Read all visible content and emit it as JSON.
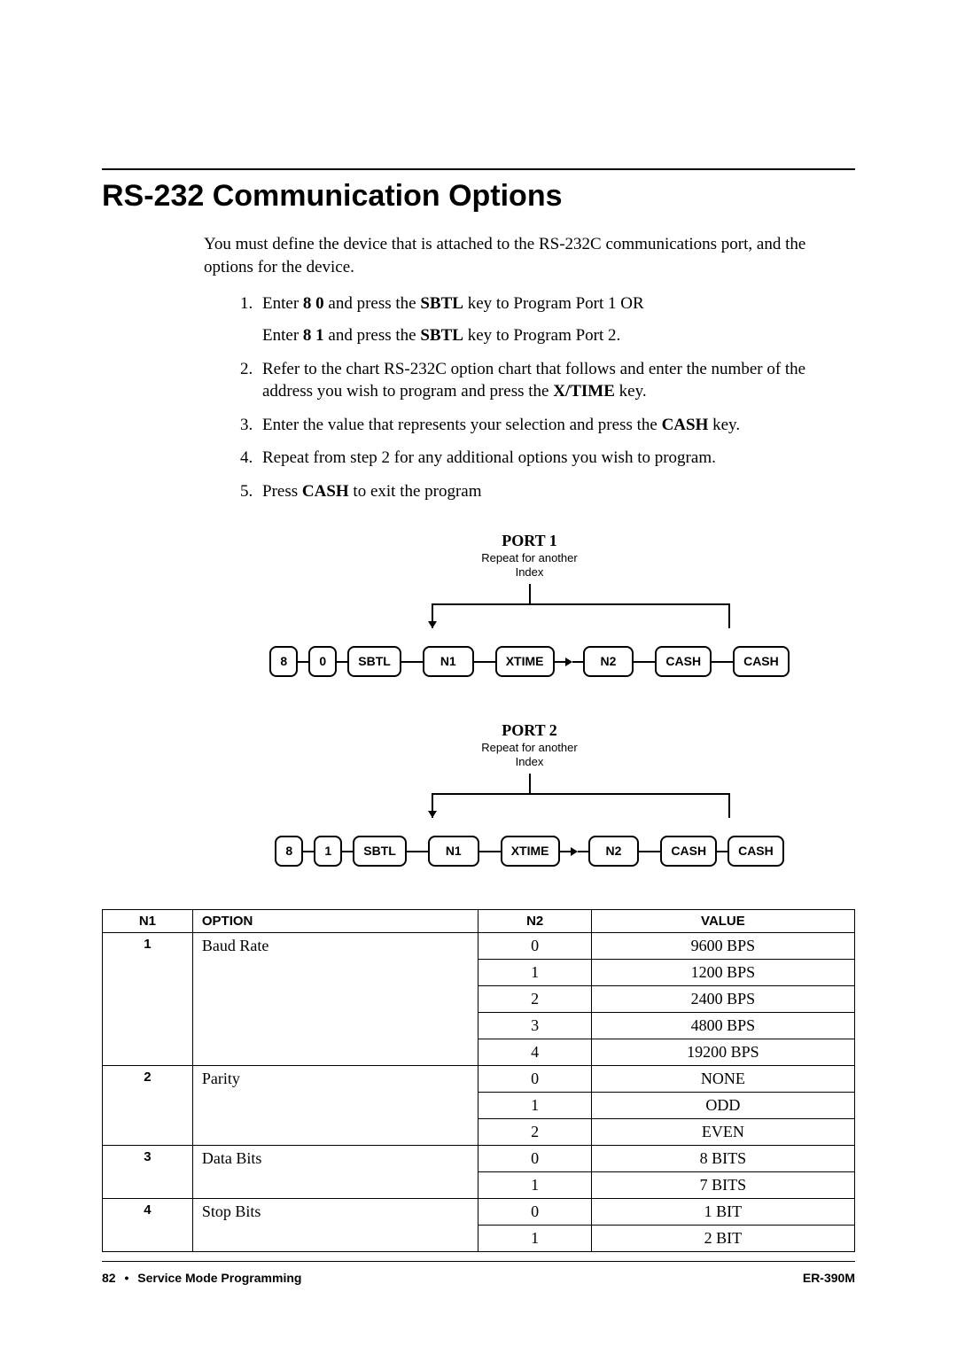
{
  "title": "RS-232 Communication Options",
  "intro": "You must define the device that is attached to the RS-232C communications port, and the options for the device.",
  "steps": {
    "item1a_pre": "Enter ",
    "item1a_key1": "8 0",
    "item1a_mid": " and press the ",
    "item1a_key2": "SBTL",
    "item1a_post": " key to Program Port 1    OR",
    "item1b_pre": "Enter ",
    "item1b_key1": "8 1",
    "item1b_mid": " and press the ",
    "item1b_key2": "SBTL",
    "item1b_post": " key to Program Port 2.",
    "item2_pre": "Refer to the chart RS-232C option chart that follows and enter the number of the address you wish to program and press the ",
    "item2_key": "X/TIME",
    "item2_post": " key.",
    "item3_pre": "Enter the value that represents your selection and press the ",
    "item3_key": "CASH",
    "item3_post": " key.",
    "item4": "Repeat from step 2 for any additional options you wish to program.",
    "item5_pre": "Press ",
    "item5_key": "CASH",
    "item5_post": " to exit the program"
  },
  "port1": {
    "label": "PORT 1",
    "repeat_text_l1": "Repeat for another",
    "repeat_text_l2": "Index",
    "keys": [
      "8",
      "0",
      "SBTL",
      "N1",
      "XTIME",
      "N2",
      "CASH",
      "CASH"
    ]
  },
  "port2": {
    "label": "PORT 2",
    "repeat_text_l1": "Repeat for another",
    "repeat_text_l2": "Index",
    "keys": [
      "8",
      "1",
      "SBTL",
      "N1",
      "XTIME",
      "N2",
      "CASH",
      "CASH"
    ]
  },
  "table": {
    "headers": {
      "n1": "N1",
      "option": "OPTION",
      "n2": "N2",
      "value": "VALUE"
    },
    "groups": [
      {
        "n1": "1",
        "option": "Baud Rate",
        "rows": [
          {
            "n2": "0",
            "value": "9600 BPS"
          },
          {
            "n2": "1",
            "value": "1200 BPS"
          },
          {
            "n2": "2",
            "value": "2400 BPS"
          },
          {
            "n2": "3",
            "value": "4800 BPS"
          },
          {
            "n2": "4",
            "value": "19200 BPS"
          }
        ]
      },
      {
        "n1": "2",
        "option": "Parity",
        "rows": [
          {
            "n2": "0",
            "value": "NONE"
          },
          {
            "n2": "1",
            "value": "ODD"
          },
          {
            "n2": "2",
            "value": "EVEN"
          }
        ]
      },
      {
        "n1": "3",
        "option": "Data Bits",
        "rows": [
          {
            "n2": "0",
            "value": "8 BITS"
          },
          {
            "n2": "1",
            "value": "7 BITS"
          }
        ]
      },
      {
        "n1": "4",
        "option": "Stop Bits",
        "rows": [
          {
            "n2": "0",
            "value": "1 BIT"
          },
          {
            "n2": "1",
            "value": "2 BIT"
          }
        ]
      }
    ]
  },
  "footer": {
    "page": "82",
    "bullet": "•",
    "section": "Service Mode Programming",
    "model": "ER-390M"
  },
  "colors": {
    "text": "#000000",
    "bg": "#ffffff"
  }
}
